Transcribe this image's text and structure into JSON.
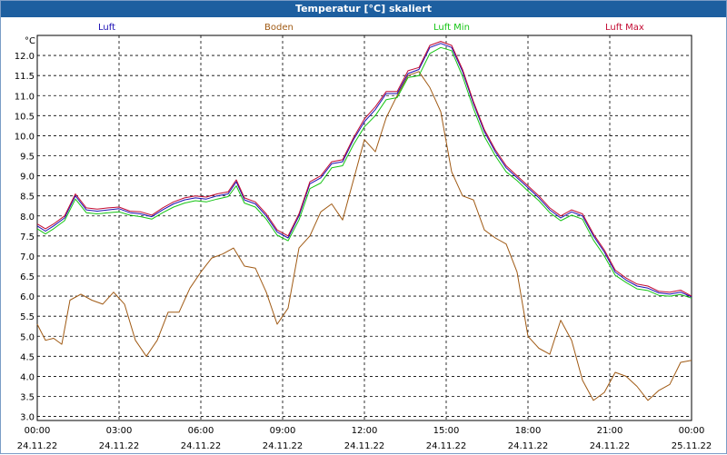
{
  "title": "Temperatur [°C] skaliert",
  "y_unit": "°C",
  "colors": {
    "luft": "#1c10b4",
    "boden": "#a05a14",
    "luft_min": "#15c414",
    "luft_max": "#c20a32",
    "titlebar": "#1d5fa0"
  },
  "chart_data": {
    "type": "line",
    "title": "Temperatur [°C] skaliert",
    "ylabel": "°C",
    "ylim": [
      2.9,
      12.5
    ],
    "yticks": [
      "3.0",
      "3.5",
      "4.0",
      "4.5",
      "5.0",
      "5.5",
      "6.0",
      "6.5",
      "7.0",
      "7.5",
      "8.0",
      "8.5",
      "9.0",
      "9.5",
      "10.0",
      "10.5",
      "11.0",
      "11.5",
      "12.0"
    ],
    "xlim": [
      0,
      24
    ],
    "x_ticks": [
      {
        "time": "00:00",
        "date": "24.11.22"
      },
      {
        "time": "03:00",
        "date": "24.11.22"
      },
      {
        "time": "06:00",
        "date": "24.11.22"
      },
      {
        "time": "09:00",
        "date": "24.11.22"
      },
      {
        "time": "12:00",
        "date": "24.11.22"
      },
      {
        "time": "15:00",
        "date": "24.11.22"
      },
      {
        "time": "18:00",
        "date": "24.11.22"
      },
      {
        "time": "21:00",
        "date": "24.11.22"
      },
      {
        "time": "00:00",
        "date": "25.11.22"
      }
    ],
    "grid": true,
    "legend_position": "top",
    "series": [
      {
        "name": "Luft",
        "key": "luft",
        "x": [
          0,
          0.3,
          0.6,
          1.0,
          1.4,
          1.8,
          2.2,
          2.6,
          3.0,
          3.4,
          3.8,
          4.2,
          4.6,
          5.0,
          5.4,
          5.8,
          6.2,
          6.6,
          7.0,
          7.3,
          7.6,
          8.0,
          8.4,
          8.8,
          9.2,
          9.6,
          10.0,
          10.4,
          10.8,
          11.2,
          11.6,
          12.0,
          12.4,
          12.8,
          13.2,
          13.6,
          14.0,
          14.4,
          14.8,
          15.2,
          15.6,
          16.0,
          16.4,
          16.8,
          17.2,
          17.6,
          18.0,
          18.4,
          18.8,
          19.2,
          19.6,
          20.0,
          20.4,
          20.8,
          21.2,
          21.6,
          22.0,
          22.4,
          22.8,
          23.2,
          23.6,
          24.0
        ],
        "y": [
          7.75,
          7.62,
          7.75,
          7.95,
          8.5,
          8.15,
          8.12,
          8.15,
          8.18,
          8.08,
          8.05,
          7.98,
          8.15,
          8.3,
          8.4,
          8.45,
          8.42,
          8.5,
          8.55,
          8.85,
          8.4,
          8.3,
          8.0,
          7.6,
          7.45,
          8.0,
          8.8,
          8.95,
          9.3,
          9.35,
          9.9,
          10.35,
          10.65,
          11.05,
          11.05,
          11.55,
          11.65,
          12.2,
          12.3,
          12.2,
          11.6,
          10.8,
          10.1,
          9.6,
          9.2,
          8.95,
          8.7,
          8.45,
          8.15,
          7.95,
          8.1,
          8.0,
          7.5,
          7.1,
          6.6,
          6.4,
          6.25,
          6.2,
          6.08,
          6.05,
          6.1,
          5.98
        ]
      },
      {
        "name": "Boden",
        "key": "boden",
        "x": [
          0,
          0.3,
          0.6,
          0.9,
          1.2,
          1.6,
          2.0,
          2.4,
          2.8,
          3.2,
          3.6,
          4.0,
          4.4,
          4.8,
          5.2,
          5.6,
          6.0,
          6.4,
          6.8,
          7.2,
          7.6,
          8.0,
          8.4,
          8.8,
          9.2,
          9.6,
          10.0,
          10.4,
          10.8,
          11.2,
          11.6,
          12.0,
          12.4,
          12.8,
          13.2,
          13.6,
          14.0,
          14.4,
          14.8,
          15.2,
          15.6,
          16.0,
          16.4,
          16.8,
          17.2,
          17.6,
          18.0,
          18.4,
          18.8,
          19.2,
          19.6,
          20.0,
          20.4,
          20.8,
          21.2,
          21.6,
          22.0,
          22.4,
          22.8,
          23.2,
          23.6,
          24.0
        ],
        "y": [
          5.3,
          4.9,
          4.95,
          4.8,
          5.9,
          6.05,
          5.9,
          5.8,
          6.1,
          5.8,
          4.9,
          4.5,
          4.9,
          5.6,
          5.6,
          6.2,
          6.6,
          6.95,
          7.05,
          7.2,
          6.75,
          6.7,
          6.1,
          5.3,
          5.7,
          7.2,
          7.5,
          8.1,
          8.3,
          7.9,
          8.9,
          9.9,
          9.6,
          10.45,
          11.0,
          11.5,
          11.6,
          11.2,
          10.6,
          9.1,
          8.5,
          8.4,
          7.65,
          7.45,
          7.3,
          6.6,
          5.0,
          4.7,
          4.55,
          5.4,
          4.9,
          3.9,
          3.4,
          3.6,
          4.1,
          4.0,
          3.75,
          3.4,
          3.65,
          3.8,
          4.35,
          4.4
        ]
      },
      {
        "name": "Luft Min",
        "key": "luft_min",
        "x": [
          0,
          0.3,
          0.6,
          1.0,
          1.4,
          1.8,
          2.2,
          2.6,
          3.0,
          3.4,
          3.8,
          4.2,
          4.6,
          5.0,
          5.4,
          5.8,
          6.2,
          6.6,
          7.0,
          7.3,
          7.6,
          8.0,
          8.4,
          8.8,
          9.2,
          9.6,
          10.0,
          10.4,
          10.8,
          11.2,
          11.6,
          12.0,
          12.4,
          12.8,
          13.2,
          13.6,
          14.0,
          14.4,
          14.8,
          15.2,
          15.6,
          16.0,
          16.4,
          16.8,
          17.2,
          17.6,
          18.0,
          18.4,
          18.8,
          19.2,
          19.6,
          20.0,
          20.4,
          20.8,
          21.2,
          21.6,
          22.0,
          22.4,
          22.8,
          23.2,
          23.6,
          24.0
        ],
        "y": [
          7.68,
          7.55,
          7.68,
          7.88,
          8.42,
          8.08,
          8.05,
          8.08,
          8.1,
          8.02,
          7.98,
          7.92,
          8.08,
          8.22,
          8.32,
          8.38,
          8.35,
          8.42,
          8.48,
          8.75,
          8.32,
          8.22,
          7.92,
          7.52,
          7.38,
          7.9,
          8.68,
          8.82,
          9.2,
          9.25,
          9.78,
          10.22,
          10.5,
          10.9,
          10.95,
          11.45,
          11.5,
          12.05,
          12.2,
          12.12,
          11.48,
          10.68,
          9.98,
          9.5,
          9.1,
          8.88,
          8.62,
          8.38,
          8.08,
          7.88,
          8.02,
          7.92,
          7.4,
          7.0,
          6.52,
          6.34,
          6.18,
          6.14,
          6.02,
          6.0,
          6.04,
          5.95
        ]
      },
      {
        "name": "Luft Max",
        "key": "luft_max",
        "x": [
          0,
          0.3,
          0.6,
          1.0,
          1.4,
          1.8,
          2.2,
          2.6,
          3.0,
          3.4,
          3.8,
          4.2,
          4.6,
          5.0,
          5.4,
          5.8,
          6.2,
          6.6,
          7.0,
          7.3,
          7.6,
          8.0,
          8.4,
          8.8,
          9.2,
          9.6,
          10.0,
          10.4,
          10.8,
          11.2,
          11.6,
          12.0,
          12.4,
          12.8,
          13.2,
          13.6,
          14.0,
          14.4,
          14.8,
          15.2,
          15.6,
          16.0,
          16.4,
          16.8,
          17.2,
          17.6,
          18.0,
          18.4,
          18.8,
          19.2,
          19.6,
          20.0,
          20.4,
          20.8,
          21.2,
          21.6,
          22.0,
          22.4,
          22.8,
          23.2,
          23.6,
          24.0
        ],
        "y": [
          7.8,
          7.68,
          7.8,
          8.0,
          8.55,
          8.2,
          8.17,
          8.2,
          8.22,
          8.12,
          8.1,
          8.02,
          8.2,
          8.35,
          8.45,
          8.5,
          8.47,
          8.55,
          8.6,
          8.9,
          8.45,
          8.35,
          8.05,
          7.65,
          7.5,
          8.05,
          8.85,
          9.0,
          9.35,
          9.4,
          9.95,
          10.42,
          10.72,
          11.1,
          11.1,
          11.62,
          11.7,
          12.25,
          12.35,
          12.25,
          11.65,
          10.85,
          10.15,
          9.65,
          9.25,
          9.0,
          8.75,
          8.5,
          8.2,
          8.0,
          8.15,
          8.05,
          7.55,
          7.15,
          6.65,
          6.45,
          6.3,
          6.25,
          6.12,
          6.1,
          6.15,
          6.0
        ]
      }
    ]
  }
}
